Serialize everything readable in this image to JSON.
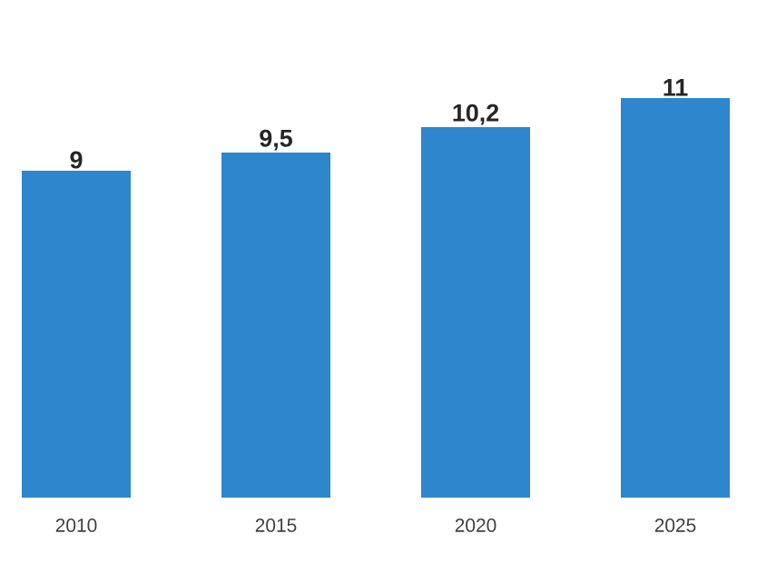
{
  "chart_data": {
    "type": "bar",
    "categories": [
      "2010",
      "2015",
      "2020",
      "2025"
    ],
    "values": [
      9,
      9.5,
      10.2,
      11
    ],
    "value_labels": [
      "9",
      "9,5",
      "10,2",
      "11"
    ],
    "color": "#2e86cd"
  }
}
